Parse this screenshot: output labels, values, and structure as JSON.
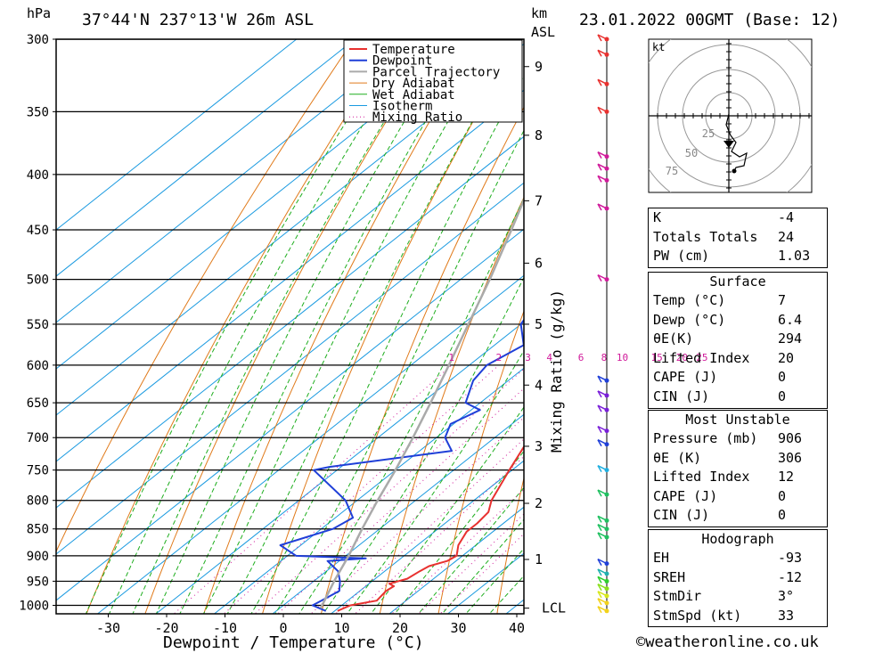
{
  "header": {
    "location": "37°44'N  237°13'W  26m  ASL",
    "datetime": "23.01.2022  00GMT  (Base: 12)",
    "hpa_unit": "hPa",
    "km_unit": "km",
    "asl_unit": "ASL"
  },
  "chart_data": {
    "type": "line",
    "subtype": "skew-T log-P sounding",
    "xlabel": "Dewpoint / Temperature (°C)",
    "ylabel_left": "hPa",
    "ylabel_right": "Mixing Ratio (g/kg)",
    "pressure_ticks": [
      300,
      350,
      400,
      450,
      500,
      550,
      600,
      650,
      700,
      750,
      800,
      850,
      900,
      950,
      1000
    ],
    "temperature_ticks": [
      -30,
      -20,
      -10,
      0,
      10,
      20,
      30,
      40
    ],
    "km_ticks": [
      {
        "label": "1",
        "p": 907
      },
      {
        "label": "2",
        "p": 805
      },
      {
        "label": "3",
        "p": 713
      },
      {
        "label": "4",
        "p": 626
      },
      {
        "label": "5",
        "p": 550
      },
      {
        "label": "6",
        "p": 483
      },
      {
        "label": "7",
        "p": 423
      },
      {
        "label": "8",
        "p": 368
      },
      {
        "label": "9",
        "p": 318
      },
      {
        "label": "LCL",
        "p": 1006
      }
    ],
    "mixing_ratio_labels": [
      "1",
      "2",
      "3",
      "4",
      "6",
      "8",
      "10",
      "15",
      "20",
      "25"
    ],
    "legend": [
      "Temperature",
      "Dewpoint",
      "Parcel Trajectory",
      "Dry Adiabat",
      "Wet Adiabat",
      "Isotherm",
      "Mixing Ratio"
    ],
    "colors": {
      "temperature": "#e8312f",
      "dewpoint": "#1f3fd8",
      "parcel": "#aaaaaa",
      "dry_adiabat": "#e07a1a",
      "wet_adiabat": "#1fae1f",
      "isotherm": "#1a9ae0",
      "mixing_ratio": "#d01a9a"
    },
    "series": [
      {
        "name": "Temperature",
        "points": [
          [
            1012,
            10.5
          ],
          [
            1000,
            11.5
          ],
          [
            990,
            15.0
          ],
          [
            970,
            14.5
          ],
          [
            960,
            14.8
          ],
          [
            955,
            13.5
          ],
          [
            945,
            15.5
          ],
          [
            930,
            16.0
          ],
          [
            920,
            16.5
          ],
          [
            910,
            18.5
          ],
          [
            900,
            19.0
          ],
          [
            880,
            17.0
          ],
          [
            855,
            15.5
          ],
          [
            840,
            15.5
          ],
          [
            820,
            15.0
          ],
          [
            800,
            13.0
          ],
          [
            750,
            9.5
          ],
          [
            700,
            6.0
          ],
          [
            670,
            4.3
          ],
          [
            650,
            5.5
          ],
          [
            640,
            5.0
          ],
          [
            620,
            6.5
          ],
          [
            600,
            3.5
          ],
          [
            575,
            1.5
          ],
          [
            550,
            -1.5
          ],
          [
            525,
            -5.0
          ],
          [
            500,
            -8.5
          ],
          [
            480,
            -10.2
          ],
          [
            450,
            -15.0
          ],
          [
            425,
            -19.5
          ],
          [
            400,
            -23.0
          ],
          [
            380,
            -26.0
          ],
          [
            350,
            -32.0
          ],
          [
            300,
            -43.0
          ]
        ]
      },
      {
        "name": "Dewpoint",
        "points": [
          [
            1012,
            8.5
          ],
          [
            1000,
            5.0
          ],
          [
            990,
            5.5
          ],
          [
            970,
            6.5
          ],
          [
            950,
            4.5
          ],
          [
            930,
            2.0
          ],
          [
            910,
            -2.0
          ],
          [
            905,
            4.0
          ],
          [
            900,
            -8.5
          ],
          [
            880,
            -13.5
          ],
          [
            850,
            -8.0
          ],
          [
            830,
            -7.0
          ],
          [
            800,
            -12.0
          ],
          [
            750,
            -24.0
          ],
          [
            745,
            -22.0
          ],
          [
            720,
            -4.5
          ],
          [
            700,
            -8.5
          ],
          [
            680,
            -10.5
          ],
          [
            660,
            -8.5
          ],
          [
            650,
            -12.5
          ],
          [
            620,
            -16.0
          ],
          [
            600,
            -17.0
          ],
          [
            575,
            -15.0
          ],
          [
            550,
            -20.0
          ],
          [
            525,
            -22.0
          ],
          [
            500,
            -28.0
          ],
          [
            480,
            -32.0
          ],
          [
            450,
            -36.0
          ],
          [
            420,
            -41.0
          ],
          [
            400,
            -45.0
          ],
          [
            380,
            -47.0
          ],
          [
            350,
            -52.0
          ],
          [
            330,
            -54.0
          ],
          [
            315,
            -62.0
          ],
          [
            300,
            -63.0
          ]
        ]
      },
      {
        "name": "Parcel Trajectory",
        "points": [
          [
            1006,
            7.0
          ],
          [
            950,
            3.5
          ],
          [
            900,
            0.5
          ],
          [
            850,
            -3.0
          ],
          [
            800,
            -6.5
          ],
          [
            750,
            -10.0
          ],
          [
            700,
            -14.0
          ],
          [
            650,
            -18.5
          ],
          [
            600,
            -23.5
          ],
          [
            550,
            -29.0
          ],
          [
            500,
            -35.0
          ],
          [
            450,
            -42.0
          ],
          [
            400,
            -50.0
          ],
          [
            350,
            -59.0
          ],
          [
            300,
            -70.0
          ]
        ]
      }
    ],
    "wind_profile": [
      {
        "p": 1012,
        "color": "#f2d21c"
      },
      {
        "p": 995,
        "color": "#f2d21c"
      },
      {
        "p": 980,
        "color": "#d6e81c"
      },
      {
        "p": 965,
        "color": "#8ae01c"
      },
      {
        "p": 950,
        "color": "#2ecf2e"
      },
      {
        "p": 935,
        "color": "#1fb0b0"
      },
      {
        "p": 915,
        "color": "#1f3fd8"
      },
      {
        "p": 865,
        "color": "#1fc060"
      },
      {
        "p": 850,
        "color": "#1fc060"
      },
      {
        "p": 835,
        "color": "#1fc060"
      },
      {
        "p": 790,
        "color": "#1fc060"
      },
      {
        "p": 750,
        "color": "#1faee0"
      },
      {
        "p": 710,
        "color": "#1f3fd8"
      },
      {
        "p": 690,
        "color": "#7a1fd8"
      },
      {
        "p": 660,
        "color": "#7a1fd8"
      },
      {
        "p": 640,
        "color": "#7a1fd8"
      },
      {
        "p": 620,
        "color": "#1f3fd8"
      },
      {
        "p": 500,
        "color": "#d01a9a"
      },
      {
        "p": 430,
        "color": "#d01a9a"
      },
      {
        "p": 405,
        "color": "#d01a9a"
      },
      {
        "p": 395,
        "color": "#d01a9a"
      },
      {
        "p": 385,
        "color": "#d01a9a"
      },
      {
        "p": 350,
        "color": "#e8312f"
      },
      {
        "p": 330,
        "color": "#e8312f"
      },
      {
        "p": 310,
        "color": "#e8312f"
      },
      {
        "p": 300,
        "color": "#e8312f"
      }
    ],
    "hodograph": {
      "unit": "kt",
      "ring_labels": [
        "25",
        "50",
        "75"
      ]
    }
  },
  "indices": {
    "rows": [
      {
        "k": "K",
        "v": "-4"
      },
      {
        "k": "Totals Totals",
        "v": "24"
      },
      {
        "k": "PW (cm)",
        "v": "1.03"
      }
    ]
  },
  "surface": {
    "title": "Surface",
    "rows": [
      {
        "k": "Temp (°C)",
        "v": "7"
      },
      {
        "k": "Dewp (°C)",
        "v": "6.4"
      },
      {
        "k": "θE(K)",
        "v": "294"
      },
      {
        "k": "Lifted Index",
        "v": "20"
      },
      {
        "k": "CAPE (J)",
        "v": "0"
      },
      {
        "k": "CIN (J)",
        "v": "0"
      }
    ]
  },
  "most_unstable": {
    "title": "Most Unstable",
    "rows": [
      {
        "k": "Pressure (mb)",
        "v": "906"
      },
      {
        "k": "θE (K)",
        "v": "306"
      },
      {
        "k": "Lifted Index",
        "v": "12"
      },
      {
        "k": "CAPE (J)",
        "v": "0"
      },
      {
        "k": "CIN (J)",
        "v": "0"
      }
    ]
  },
  "hodograph_table": {
    "title": "Hodograph",
    "rows": [
      {
        "k": "EH",
        "v": "-93"
      },
      {
        "k": "SREH",
        "v": "-12"
      },
      {
        "k": "StmDir",
        "v": "3°"
      },
      {
        "k": "StmSpd (kt)",
        "v": "33"
      }
    ]
  },
  "footer": {
    "credit": "©weatheronline.co.uk"
  }
}
